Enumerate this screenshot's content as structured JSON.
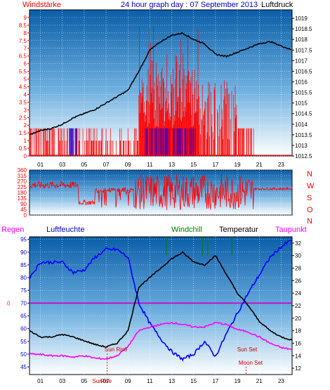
{
  "header": {
    "left_label": "Windstärke",
    "center_label": "24 hour graph day : 07 September 2013",
    "right_label": "Luftdruck"
  },
  "colors": {
    "wind": "#ff0000",
    "gust_bars": "#ff0000",
    "calm_bars": "#0000ff",
    "pressure": "#000000",
    "humidity": "#0000ff",
    "temperature": "#000000",
    "dewpoint": "#ff00ff",
    "windchill": "#008000",
    "zero_line": "#cc00cc",
    "bg_top": "#0a5ea8",
    "bg_bottom": "#ffffff"
  },
  "x_ticks": [
    "01",
    "03",
    "05",
    "07",
    "09",
    "11",
    "13",
    "15",
    "17",
    "19",
    "21",
    "23"
  ],
  "chart_data": [
    {
      "type": "line",
      "title": "24 hour graph day : 07 September 2013",
      "series": [
        {
          "name": "Windstärke",
          "axis": "left",
          "unit": "Bft"
        },
        {
          "name": "Luftdruck",
          "axis": "right",
          "unit": "hPa",
          "x": [
            0,
            1,
            2,
            3,
            4,
            5,
            6,
            7,
            8,
            9,
            10,
            11,
            12,
            13,
            14,
            15,
            16,
            17,
            18,
            19,
            20,
            21,
            22,
            23,
            24
          ],
          "y": [
            1013.5,
            1013.7,
            1013.8,
            1014.0,
            1014.3,
            1014.5,
            1014.7,
            1015.0,
            1015.3,
            1015.6,
            1016.5,
            1017.5,
            1017.9,
            1018.2,
            1018.3,
            1018.0,
            1017.8,
            1017.3,
            1017.2,
            1017.4,
            1017.6,
            1017.8,
            1017.9,
            1017.7,
            1017.5
          ]
        }
      ],
      "left_axis": {
        "ticks": [
          "0",
          "0.5",
          "1",
          "1.5",
          "2",
          "2.5",
          "3",
          "3.5",
          "4",
          "4.5",
          "5",
          "5.5",
          "6",
          "6.5",
          "7",
          "7.5",
          "8",
          "8.5",
          "9"
        ],
        "range": [
          0,
          9.5
        ]
      },
      "right_axis": {
        "ticks": [
          "1012.5",
          "1013",
          "1013.5",
          "1014",
          "1014.5",
          "1015",
          "1015.5",
          "1016",
          "1016.5",
          "1017",
          "1017.5",
          "1018",
          "1018.5",
          "1019"
        ],
        "range": [
          1012.5,
          1019.4
        ]
      }
    },
    {
      "type": "line",
      "series": [
        {
          "name": "Wind direction",
          "unit": "°"
        }
      ],
      "left_axis": {
        "ticks": [
          "360",
          "315",
          "270",
          "225",
          "180",
          "135",
          "90",
          "45",
          "0"
        ],
        "range": [
          0,
          360
        ]
      },
      "right_labels": [
        "N",
        "W",
        "S",
        "O",
        "N"
      ]
    },
    {
      "type": "line",
      "legend": [
        "Regen",
        "Luftfeuchte",
        "Windchill",
        "Temperatur",
        "Taupunkt"
      ],
      "series": [
        {
          "name": "Luftfeuchte",
          "axis": "left",
          "unit": "%",
          "x": [
            0,
            1,
            2,
            3,
            4,
            5,
            6,
            7,
            8,
            9,
            10,
            11,
            12,
            13,
            14,
            15,
            16,
            17,
            18,
            19,
            20,
            21,
            22,
            23,
            24
          ],
          "y": [
            80,
            86,
            86,
            86,
            82,
            83,
            88,
            91,
            91,
            88,
            70,
            62,
            56,
            51,
            48,
            50,
            55,
            49,
            58,
            66,
            74,
            81,
            88,
            92,
            95
          ]
        },
        {
          "name": "Temperatur",
          "axis": "right",
          "unit": "°C",
          "x": [
            0,
            1,
            2,
            3,
            4,
            5,
            6,
            7,
            8,
            9,
            10,
            11,
            12,
            13,
            14,
            15,
            16,
            17,
            18,
            19,
            20,
            21,
            22,
            23,
            24
          ],
          "y": [
            18.0,
            17.0,
            17.0,
            17.4,
            17.0,
            16.4,
            15.8,
            15.4,
            16.0,
            18.0,
            25.0,
            26.5,
            28.0,
            29.5,
            30.5,
            29.0,
            28.5,
            30.0,
            27.0,
            24.0,
            22.0,
            19.5,
            18.0,
            17.0,
            16.5
          ]
        },
        {
          "name": "Taupunkt",
          "axis": "right",
          "unit": "°C",
          "x": [
            0,
            1,
            2,
            3,
            4,
            5,
            6,
            7,
            8,
            9,
            10,
            11,
            12,
            13,
            14,
            15,
            16,
            17,
            18,
            19,
            20,
            21,
            22,
            23,
            24
          ],
          "y": [
            14.3,
            14.2,
            14.0,
            14.0,
            13.8,
            14.0,
            13.6,
            13.5,
            14.0,
            15.5,
            18.0,
            18.6,
            19.0,
            19.3,
            19.0,
            18.6,
            18.6,
            19.3,
            19.0,
            18.2,
            17.8,
            17.0,
            16.0,
            15.3,
            15.0
          ]
        }
      ],
      "left_axis": {
        "ticks": [
          "95",
          "90",
          "85",
          "80",
          "75",
          "70",
          "65",
          "60",
          "55",
          "50",
          "45"
        ],
        "range": [
          42,
          96
        ]
      },
      "right_axis": {
        "ticks": [
          "32",
          "30",
          "28",
          "26",
          "24",
          "22",
          "20",
          "18",
          "16",
          "14",
          "12"
        ],
        "range": [
          11,
          33
        ]
      },
      "regen_axis": {
        "zero_label": "0"
      },
      "annotations": [
        {
          "text": "Sun Rise"
        },
        {
          "text": "Sun Set"
        },
        {
          "text": "Moon Set"
        },
        {
          "text": "Sun"
        },
        {
          "text": "Moon"
        },
        {
          "text": "Rise"
        }
      ]
    }
  ]
}
